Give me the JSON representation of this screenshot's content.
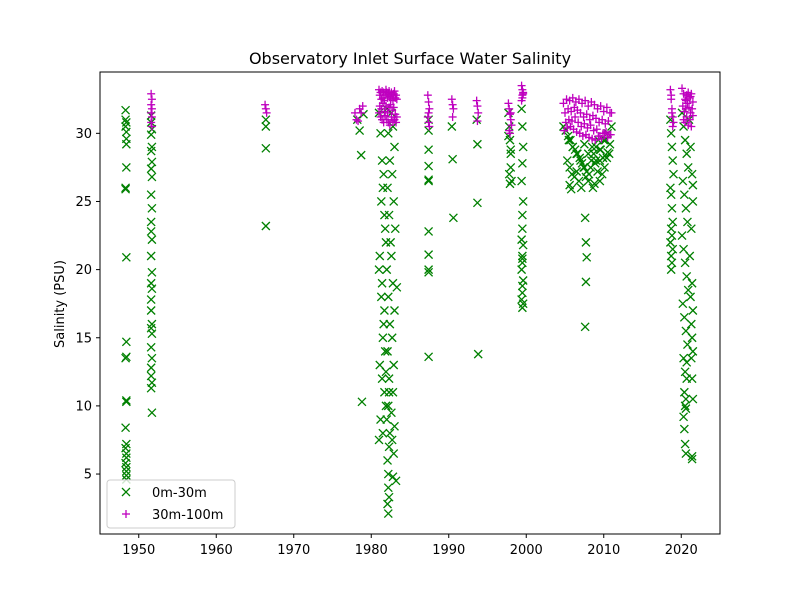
{
  "chart_data": {
    "type": "scatter",
    "title": "Observatory Inlet Surface Water Salinity",
    "xlabel": "",
    "ylabel": "Salinity (PSU)",
    "xlim": [
      1945,
      2025
    ],
    "ylim": [
      0.6,
      34.5
    ],
    "x_ticks": [
      1950,
      1960,
      1970,
      1980,
      1990,
      2000,
      2010,
      2020
    ],
    "y_ticks": [
      5,
      10,
      15,
      20,
      25,
      30
    ],
    "grid": false,
    "legend_position": "lower-left",
    "colors": {
      "series_0": "#008000",
      "series_1": "#bf00bf"
    },
    "series": [
      {
        "name": "0m-30m",
        "marker": "x",
        "x": [
          1948.3,
          1948.3,
          1948.3,
          1948.4,
          1948.4,
          1948.4,
          1948.4,
          1948.3,
          1948.3,
          1948.4,
          1948.4,
          1948.4,
          1948.3,
          1948.4,
          1948.4,
          1948.3,
          1948.4,
          1948.3,
          1948.4,
          1948.4,
          1948.3,
          1948.4,
          1948.4,
          1948.4,
          1948.4,
          1948.4,
          1951.6,
          1951.6,
          1951.7,
          1951.6,
          1951.7,
          1951.6,
          1951.7,
          1951.6,
          1951.7,
          1951.6,
          1951.7,
          1951.6,
          1951.6,
          1951.7,
          1951.6,
          1951.7,
          1951.6,
          1951.7,
          1951.6,
          1951.6,
          1951.7,
          1951.6,
          1951.7,
          1951.6,
          1951.7,
          1951.6,
          1951.6,
          1951.7,
          1951.6,
          1951.7,
          1966.4,
          1966.4,
          1966.4,
          1966.4,
          1978.2,
          1978.5,
          1978.7,
          1978.8,
          1979.0,
          1981.0,
          1981.2,
          1981.4,
          1981.5,
          1981.7,
          1981.9,
          1981.0,
          1981.3,
          1981.6,
          1981.8,
          1981.1,
          1981.4,
          1981.7,
          1981.9,
          1981.2,
          1981.5,
          1981.0,
          1981.6,
          1981.3,
          1981.8,
          1981.1,
          1981.4,
          1981.7,
          1981.5,
          1981.9,
          1982.0,
          1982.2,
          1982.4,
          1982.1,
          1982.3,
          1982.5,
          1982.0,
          1982.2,
          1982.4,
          1982.1,
          1982.3,
          1982.2,
          1982.0,
          1982.4,
          1982.3,
          1982.1,
          1982.2,
          1982.2,
          1982.3,
          1982.1,
          1982.2,
          1982.3,
          1982.6,
          1982.8,
          1983.0,
          1982.7,
          1982.9,
          1983.1,
          1982.6,
          1982.8,
          1983.0,
          1982.7,
          1982.9,
          1982.8,
          1982.6,
          1983.0,
          1982.7,
          1982.9,
          1982.8,
          1983.2,
          1983.3,
          1987.4,
          1987.4,
          1987.4,
          1987.4,
          1987.4,
          1987.4,
          1987.4,
          1987.4,
          1987.4,
          1987.4,
          1987.4,
          1990.4,
          1990.5,
          1990.6,
          1993.6,
          1993.7,
          1993.7,
          1993.8,
          1997.7,
          1997.8,
          1997.9,
          1998.0,
          1998.0,
          1998.1,
          1997.8,
          1997.9,
          1998.0,
          1997.7,
          1999.4,
          1999.5,
          1999.6,
          1999.5,
          1999.4,
          1999.6,
          1999.5,
          1999.5,
          1999.4,
          1999.6,
          1999.5,
          1999.5,
          1999.4,
          1999.6,
          1999.5,
          1999.5,
          1999.4,
          1999.6,
          1999.5,
          1999.5,
          2004.8,
          2005.1,
          2005.4,
          2005.7,
          2006.0,
          2006.3,
          2006.6,
          2006.9,
          2007.2,
          2007.5,
          2007.8,
          2008.1,
          2008.4,
          2008.7,
          2009.0,
          2009.3,
          2009.6,
          2009.9,
          2010.2,
          2010.5,
          2010.8,
          2011.0,
          2005.3,
          2005.6,
          2005.9,
          2006.2,
          2006.5,
          2006.8,
          2007.1,
          2007.4,
          2007.7,
          2008.0,
          2008.3,
          2008.6,
          2008.9,
          2009.2,
          2009.5,
          2009.8,
          2010.1,
          2010.4,
          2010.7,
          2005.5,
          2006.0,
          2006.5,
          2007.0,
          2007.5,
          2008.0,
          2008.5,
          2009.0,
          2009.5,
          2010.0,
          2010.5,
          2005.6,
          2005.8,
          2007.6,
          2007.7,
          2007.8,
          2007.7,
          2007.6,
          2009.5,
          2008.8,
          2018.6,
          2018.7,
          2018.8,
          2018.9,
          2019.0,
          2018.6,
          2018.7,
          2018.8,
          2018.9,
          2018.7,
          2018.8,
          2018.6,
          2018.9,
          2018.7,
          2018.8,
          2018.7,
          2020.1,
          2020.3,
          2020.5,
          2020.7,
          2020.9,
          2020.2,
          2020.4,
          2020.6,
          2020.8,
          2020.1,
          2020.3,
          2020.5,
          2020.7,
          2020.9,
          2020.2,
          2020.4,
          2020.6,
          2020.8,
          2020.3,
          2020.5,
          2020.7,
          2020.4,
          2020.6,
          2020.5,
          2020.6,
          2020.3,
          2020.4,
          2020.5,
          2020.6,
          2020.7,
          2021.0,
          2021.2,
          2021.4,
          2021.5,
          2021.3,
          2021.1,
          2021.4,
          2021.2,
          2021.5,
          2021.3,
          2021.4,
          2021.5,
          2021.3,
          2021.4,
          2021.5,
          2021.4,
          2021.4,
          2021.5
        ],
        "y": [
          31.7,
          31.0,
          30.5,
          30.1,
          29.6,
          29.2,
          27.5,
          26.0,
          25.9,
          20.9,
          14.7,
          13.6,
          13.5,
          10.4,
          10.3,
          8.4,
          7.2,
          6.9,
          6.5,
          6.2,
          5.8,
          5.5,
          5.2,
          4.9,
          4.6,
          30.8,
          31.3,
          30.8,
          30.3,
          29.9,
          29.0,
          28.7,
          27.9,
          27.4,
          26.8,
          25.5,
          24.5,
          23.5,
          22.8,
          22.2,
          21.0,
          19.8,
          19.0,
          18.6,
          17.8,
          17.0,
          16.0,
          15.7,
          15.3,
          14.3,
          13.5,
          12.8,
          12.2,
          11.7,
          11.3,
          9.5,
          31.0,
          30.5,
          28.9,
          23.2,
          31.0,
          30.2,
          28.4,
          10.3,
          31.4,
          31.5,
          30.0,
          28.0,
          26.0,
          24.0,
          22.0,
          20.0,
          18.0,
          16.0,
          14.0,
          13.0,
          12.0,
          11.0,
          10.0,
          9.0,
          8.0,
          7.5,
          27.0,
          25.0,
          23.0,
          21.0,
          19.0,
          17.0,
          15.0,
          12.5,
          31.8,
          30.0,
          28.0,
          26.0,
          24.0,
          22.0,
          20.0,
          18.0,
          16.0,
          14.0,
          12.0,
          10.0,
          9.0,
          8.0,
          7.0,
          6.0,
          5.0,
          4.0,
          3.3,
          2.8,
          2.1,
          11.0,
          31.5,
          30.5,
          29.0,
          27.0,
          25.0,
          23.0,
          21.0,
          19.0,
          17.0,
          15.0,
          13.0,
          11.0,
          9.5,
          8.5,
          7.5,
          6.5,
          4.8,
          4.5,
          18.7,
          31.0,
          30.2,
          28.8,
          27.6,
          26.6,
          26.5,
          22.8,
          21.1,
          20.0,
          19.8,
          13.6,
          30.5,
          28.1,
          23.8,
          31.0,
          29.2,
          24.9,
          13.8,
          31.5,
          30.5,
          29.5,
          28.5,
          27.5,
          26.5,
          27.0,
          26.3,
          28.8,
          29.8,
          31.8,
          30.5,
          29.0,
          27.8,
          26.5,
          25.0,
          24.0,
          23.0,
          22.2,
          21.8,
          20.8,
          20.5,
          20.0,
          19.2,
          18.8,
          18.3,
          17.8,
          17.5,
          17.2,
          21.0,
          30.5,
          30.2,
          29.8,
          29.5,
          29.0,
          28.8,
          28.5,
          28.2,
          27.8,
          27.5,
          27.2,
          27.0,
          28.0,
          28.5,
          29.0,
          29.5,
          28.8,
          28.2,
          29.5,
          30.0,
          29.2,
          30.5,
          28.0,
          27.5,
          27.0,
          26.8,
          27.2,
          26.5,
          26.0,
          27.5,
          26.8,
          26.5,
          27.5,
          26.0,
          27.8,
          27.2,
          28.0,
          27.0,
          27.5,
          28.2,
          28.5,
          29.5,
          29.0,
          28.5,
          28.0,
          29.2,
          28.5,
          29.0,
          28.0,
          28.8,
          29.5,
          28.6,
          26.2,
          25.9,
          23.8,
          22.0,
          20.9,
          19.1,
          15.8,
          26.5,
          26.3,
          31.0,
          30.0,
          29.0,
          28.0,
          27.0,
          26.0,
          25.5,
          24.5,
          23.5,
          23.0,
          22.5,
          22.0,
          21.5,
          21.0,
          20.5,
          20.0,
          31.5,
          30.5,
          29.5,
          28.5,
          27.5,
          26.5,
          25.5,
          24.5,
          23.5,
          22.5,
          21.5,
          20.5,
          19.5,
          18.5,
          17.5,
          16.5,
          15.5,
          14.5,
          13.5,
          12.5,
          12.0,
          11.0,
          10.5,
          10.0,
          9.8,
          9.2,
          8.3,
          7.2,
          6.5,
          13.2,
          31.0,
          29.0,
          27.0,
          25.0,
          23.0,
          21.0,
          19.0,
          18.0,
          17.0,
          16.0,
          15.0,
          14.0,
          13.5,
          12.0,
          10.5,
          6.3,
          6.1,
          26.2
        ]
      },
      {
        "name": "30m-100m",
        "marker": "+",
        "x": [
          1951.6,
          1951.7,
          1951.6,
          1951.7,
          1951.6,
          1951.7,
          1951.6,
          1951.7,
          1966.3,
          1966.4,
          1966.5,
          1977.9,
          1978.1,
          1978.3,
          1978.5,
          1978.7,
          1978.9,
          1981.0,
          1981.1,
          1981.2,
          1981.3,
          1981.4,
          1981.5,
          1981.6,
          1981.7,
          1981.8,
          1981.9,
          1982.0,
          1982.1,
          1982.2,
          1982.3,
          1982.4,
          1982.5,
          1982.6,
          1982.7,
          1982.8,
          1982.9,
          1983.0,
          1983.1,
          1983.2,
          1983.3,
          1981.0,
          1981.2,
          1981.4,
          1981.6,
          1981.8,
          1982.0,
          1982.2,
          1982.4,
          1982.6,
          1982.8,
          1983.0,
          1983.2,
          1981.1,
          1981.3,
          1981.5,
          1981.7,
          1981.9,
          1982.1,
          1982.3,
          1982.5,
          1982.7,
          1982.9,
          1983.1,
          1983.3,
          1987.3,
          1987.4,
          1987.5,
          1987.3,
          1987.4,
          1987.5,
          1987.4,
          1990.4,
          1990.5,
          1990.6,
          1990.5,
          1993.6,
          1993.7,
          1993.8,
          1993.7,
          1997.7,
          1997.8,
          1997.9,
          1998.0,
          1998.1,
          1997.8,
          1997.9,
          1998.0,
          1999.4,
          1999.5,
          1999.6,
          1999.5,
          1999.4,
          1999.6,
          1999.5,
          2004.8,
          2005.2,
          2005.6,
          2006.0,
          2006.4,
          2006.8,
          2007.2,
          2007.6,
          2008.0,
          2008.4,
          2008.8,
          2009.2,
          2009.6,
          2010.0,
          2010.4,
          2010.8,
          2005.0,
          2005.4,
          2005.8,
          2006.2,
          2006.6,
          2007.0,
          2007.4,
          2007.8,
          2008.2,
          2008.6,
          2009.0,
          2009.4,
          2009.8,
          2010.2,
          2010.6,
          2011.0,
          2005.1,
          2005.5,
          2005.9,
          2006.3,
          2006.7,
          2007.1,
          2007.5,
          2007.9,
          2008.3,
          2008.7,
          2009.1,
          2009.5,
          2009.9,
          2010.3,
          2010.7,
          2004.9,
          2005.3,
          2005.7,
          2006.1,
          2006.5,
          2006.9,
          2007.3,
          2007.7,
          2008.1,
          2008.5,
          2008.9,
          2009.3,
          2009.7,
          2010.1,
          2010.5,
          2010.9,
          2018.6,
          2018.7,
          2018.8,
          2018.9,
          2019.0,
          2018.7,
          2018.8,
          2018.9,
          2020.1,
          2020.3,
          2020.5,
          2020.7,
          2020.9,
          2021.1,
          2021.3,
          2021.5,
          2020.2,
          2020.4,
          2020.6,
          2020.8,
          2021.0,
          2021.2,
          2021.4,
          2020.3,
          2020.5,
          2020.7,
          2020.9,
          2021.1,
          2021.3,
          2021.5,
          2020.6,
          2021.2
        ],
        "y": [
          32.9,
          32.5,
          32.1,
          31.8,
          31.5,
          31.2,
          30.8,
          30.5,
          32.1,
          31.8,
          31.5,
          31.5,
          31.0,
          30.9,
          31.8,
          31.5,
          32.0,
          33.2,
          32.8,
          33.0,
          32.5,
          33.1,
          32.6,
          33.0,
          32.4,
          32.8,
          33.2,
          33.0,
          32.6,
          32.9,
          33.1,
          32.7,
          32.5,
          33.0,
          32.8,
          32.4,
          32.9,
          33.1,
          32.6,
          32.8,
          32.5,
          31.5,
          31.2,
          31.0,
          30.8,
          31.3,
          31.0,
          30.8,
          30.6,
          31.2,
          30.9,
          31.0,
          30.8,
          32.0,
          31.8,
          32.2,
          31.6,
          32.0,
          31.5,
          31.9,
          32.1,
          31.7,
          31.9,
          31.4,
          31.2,
          32.8,
          32.3,
          31.8,
          31.2,
          30.8,
          30.5,
          31.5,
          32.5,
          32.1,
          31.8,
          31.2,
          32.4,
          32.0,
          31.5,
          30.9,
          32.2,
          31.8,
          31.4,
          31.0,
          30.6,
          30.2,
          30.0,
          31.5,
          33.5,
          33.2,
          32.9,
          32.6,
          32.4,
          33.0,
          32.8,
          32.2,
          32.5,
          32.4,
          32.6,
          32.3,
          32.5,
          32.2,
          32.4,
          32.0,
          32.3,
          32.1,
          31.8,
          32.0,
          31.6,
          31.9,
          31.5,
          31.5,
          31.8,
          31.6,
          31.9,
          31.7,
          31.5,
          31.2,
          31.4,
          31.0,
          31.3,
          31.1,
          30.8,
          31.0,
          30.7,
          30.9,
          31.5,
          30.8,
          31.0,
          30.9,
          31.2,
          30.8,
          30.5,
          30.7,
          30.4,
          30.6,
          30.2,
          30.3,
          29.8,
          30.0,
          30.1,
          29.9,
          30.2,
          30.4,
          30.5,
          30.3,
          30.1,
          30.0,
          29.8,
          29.9,
          29.7,
          29.6,
          29.5,
          29.8,
          29.6,
          30.0,
          29.7,
          29.9,
          33.2,
          32.5,
          31.8,
          31.2,
          30.8,
          32.8,
          31.5,
          30.5,
          33.3,
          32.9,
          32.5,
          32.8,
          33.0,
          32.6,
          32.9,
          32.3,
          32.0,
          31.6,
          31.8,
          32.2,
          31.9,
          31.5,
          31.8,
          31.0,
          30.8,
          31.2,
          30.6,
          31.0,
          30.5,
          31.3,
          32.4,
          32.7
        ]
      }
    ]
  }
}
